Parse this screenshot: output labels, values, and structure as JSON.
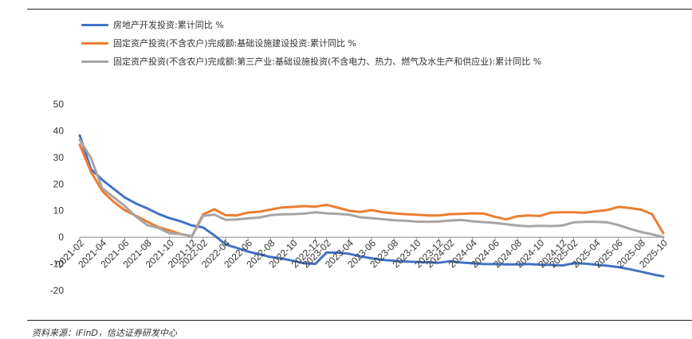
{
  "chart_data": {
    "type": "line",
    "title": "",
    "xlabel": "",
    "ylabel": "",
    "ylim": [
      -20,
      50
    ],
    "yticks": [
      -20,
      -10,
      0,
      10,
      20,
      30,
      40,
      50
    ],
    "grid": false,
    "legend_position": "top",
    "x": [
      "2021-02",
      "2021-03",
      "2021-04",
      "2021-05",
      "2021-06",
      "2021-07",
      "2021-08",
      "2021-09",
      "2021-10",
      "2021-11",
      "2021-12",
      "2022-02",
      "2022-03",
      "2022-04",
      "2022-05",
      "2022-06",
      "2022-07",
      "2022-08",
      "2022-09",
      "2022-10",
      "2022-11",
      "2022-12",
      "2023-02",
      "2023-03",
      "2023-04",
      "2023-05",
      "2023-06",
      "2023-07",
      "2023-08",
      "2023-09",
      "2023-10",
      "2023-11",
      "2023-12",
      "2024-02",
      "2024-03",
      "2024-04",
      "2024-05",
      "2024-06",
      "2024-07",
      "2024-08",
      "2024-09",
      "2024-10",
      "2024-11",
      "2024-12",
      "2025-02",
      "2025-03",
      "2025-04",
      "2025-05",
      "2025-06",
      "2025-07",
      "2025-08",
      "2025-09",
      "2025-10"
    ],
    "x_tick_labels": [
      "2021-02",
      "2021-04",
      "2021-06",
      "2021-08",
      "2021-10",
      "2021-12",
      "2022-02",
      "2022-04",
      "2022-06",
      "2022-08",
      "2022-10",
      "2022-12",
      "2023-02",
      "2023-04",
      "2023-06",
      "2023-08",
      "2023-10",
      "2023-12",
      "2024-02",
      "2024-04",
      "2024-06",
      "2024-08",
      "2024-10",
      "2024-12",
      "2025-02",
      "2025-04",
      "2025-06",
      "2025-08",
      "2025-10"
    ],
    "series": [
      {
        "name": "房地产开发投资:累计同比 %",
        "color": "#4472C4",
        "values": [
          38.3,
          25.6,
          21.6,
          18.3,
          15.0,
          12.7,
          10.9,
          8.8,
          7.2,
          6.0,
          4.4,
          3.7,
          0.7,
          -2.7,
          -4.0,
          -5.4,
          -6.4,
          -7.4,
          -8.0,
          -8.8,
          -9.8,
          -10.0,
          -5.7,
          -5.8,
          -6.2,
          -7.2,
          -7.9,
          -8.5,
          -8.8,
          -9.1,
          -9.3,
          -9.4,
          -9.6,
          -9.0,
          -9.5,
          -9.8,
          -10.1,
          -10.1,
          -10.2,
          -10.2,
          -10.1,
          -10.3,
          -10.4,
          -10.6,
          -9.8,
          -9.9,
          -10.3,
          -10.7,
          -11.2,
          -12.0,
          -12.9,
          -13.9,
          -14.7
        ]
      },
      {
        "name": "固定资产投资(不含农户)完成额:基础设施建设投资:累计同比 %",
        "color": "#ED7D31",
        "values": [
          34.8,
          24.6,
          17.4,
          13.4,
          10.2,
          8.1,
          5.9,
          3.8,
          2.6,
          1.2,
          0.4,
          8.6,
          10.5,
          8.3,
          8.2,
          9.3,
          9.6,
          10.4,
          11.2,
          11.4,
          11.7,
          11.5,
          12.2,
          11.1,
          10.0,
          9.5,
          10.2,
          9.4,
          9.0,
          8.7,
          8.5,
          8.2,
          8.2,
          8.7,
          8.8,
          9.0,
          8.9,
          7.7,
          6.7,
          7.9,
          8.2,
          8.0,
          9.3,
          9.4,
          9.4,
          9.2,
          9.8,
          10.2,
          11.4,
          11.0,
          10.4,
          8.7,
          1.5
        ]
      },
      {
        "name": "固定资产投资(不含农户)完成额:第三产业:基础设施投资(不含电力、热力、燃气及水生产和供应业):累计同比 %",
        "color": "#A5A5A5",
        "values": [
          36.6,
          29.8,
          18.4,
          15.1,
          11.8,
          7.8,
          4.6,
          3.5,
          1.5,
          1.2,
          0.4,
          8.1,
          8.5,
          6.5,
          6.7,
          7.1,
          7.4,
          8.3,
          8.6,
          8.7,
          8.9,
          9.4,
          9.0,
          8.8,
          8.5,
          7.5,
          7.2,
          6.8,
          6.4,
          6.2,
          5.9,
          5.8,
          5.9,
          6.3,
          6.5,
          6.0,
          5.7,
          5.4,
          4.9,
          4.4,
          4.1,
          4.3,
          4.2,
          4.4,
          5.6,
          5.8,
          5.8,
          5.6,
          4.6,
          3.2,
          2.0,
          1.1,
          0.1
        ]
      }
    ]
  },
  "footer": {
    "source": "资料来源：iFinD，信达证券研发中心"
  }
}
